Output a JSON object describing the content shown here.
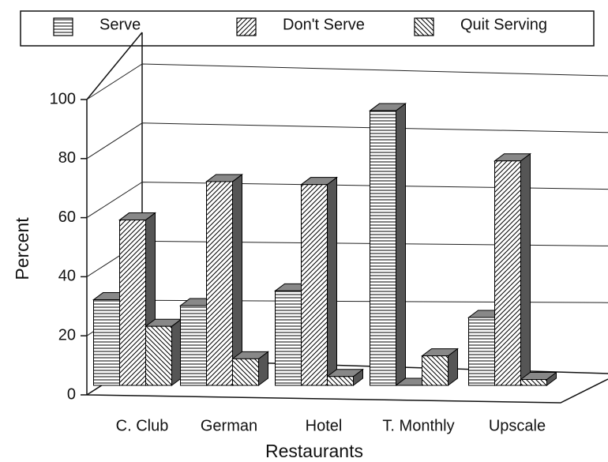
{
  "chart_data": {
    "type": "bar3d",
    "x_label": "Restaurants",
    "y_label": "Percent",
    "categories": [
      "C. Club",
      "German",
      "Hotel",
      "T. Monthly",
      "Upscale"
    ],
    "series": [
      {
        "name": "Serve",
        "color": "#000000",
        "pattern": "horizontal",
        "values": [
          29,
          27,
          32,
          93,
          23
        ]
      },
      {
        "name": "Don't Serve",
        "color": "#000000",
        "pattern": "forward-diagonal",
        "values": [
          56,
          69,
          68,
          0,
          76
        ]
      },
      {
        "name": "Quit Serving",
        "color": "#000000",
        "pattern": "back-diagonal",
        "values": [
          20,
          9,
          3,
          10,
          2
        ]
      }
    ],
    "ylim": [
      0,
      100
    ],
    "yticks": [
      0,
      20,
      40,
      60,
      80,
      100
    ],
    "grid": true,
    "legend": "top"
  }
}
